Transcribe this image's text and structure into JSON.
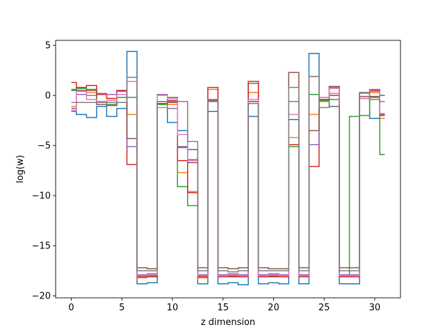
{
  "chart_data": {
    "type": "line",
    "drawstyle": "steps-mid",
    "xlabel": "z dimension",
    "ylabel": "log(w)",
    "xlim": [
      -1.55,
      32.55
    ],
    "ylim": [
      -20.2,
      5.5
    ],
    "xticks": [
      0,
      5,
      10,
      15,
      20,
      25,
      30
    ],
    "yticks": [
      5,
      0,
      -5,
      -10,
      -15,
      -20
    ],
    "x": [
      0,
      1,
      2,
      3,
      4,
      5,
      6,
      7,
      8,
      9,
      10,
      11,
      12,
      13,
      14,
      15,
      16,
      17,
      18,
      19,
      20,
      21,
      22,
      23,
      24,
      25,
      26,
      27,
      28,
      29,
      30,
      31
    ],
    "series": [
      {
        "color": "#1f77b4",
        "values": [
          -1.3,
          -1.9,
          -2.2,
          -1.1,
          -2.1,
          -1.3,
          4.4,
          -18.8,
          -18.7,
          -0.8,
          -2.7,
          -3.5,
          -5.4,
          -18.8,
          -1.6,
          -18.8,
          -18.7,
          -18.9,
          -2.1,
          -18.8,
          -18.7,
          -18.8,
          -2.4,
          -18.8,
          4.2,
          -0.6,
          -1.1,
          -18.8,
          -18.8,
          0.2,
          -2.3,
          0.0
        ]
      },
      {
        "color": "#ff7f0e",
        "values": [
          -1.1,
          0.5,
          0.3,
          0.2,
          -0.3,
          0.5,
          -1.9,
          -18.2,
          -18.1,
          -1.2,
          -0.9,
          -7.7,
          -9.6,
          -18.2,
          0.6,
          -18.1,
          -18.1,
          -18.1,
          0.3,
          -18.1,
          -18.1,
          -18.1,
          -4.2,
          -18.1,
          -1.9,
          -0.6,
          0.2,
          -18.1,
          -18.1,
          0.2,
          0.3,
          -2.3
        ]
      },
      {
        "color": "#2ca02c",
        "values": [
          0.5,
          0.7,
          0.6,
          -0.6,
          -0.9,
          -0.2,
          -0.2,
          -18.0,
          -18.0,
          -0.9,
          -0.2,
          -9.1,
          -11.0,
          -18.0,
          -0.6,
          -18.0,
          -18.0,
          -18.0,
          1.2,
          -18.0,
          -18.0,
          -18.0,
          -5.1,
          -18.0,
          0.1,
          -0.5,
          -0.4,
          -18.0,
          -2.1,
          -2.0,
          -0.2,
          -5.9
        ]
      },
      {
        "color": "#d62728",
        "values": [
          1.3,
          0.8,
          1.0,
          0.1,
          -0.3,
          0.5,
          -6.9,
          -18.1,
          -18.1,
          -0.6,
          -0.5,
          -6.5,
          -9.7,
          -18.1,
          0.8,
          -18.1,
          -18.1,
          -18.1,
          1.4,
          -18.1,
          -18.1,
          -18.1,
          -4.9,
          -18.1,
          -7.1,
          -0.4,
          0.0,
          -18.1,
          -18.1,
          -0.3,
          0.5,
          -2.0
        ]
      },
      {
        "color": "#9467bd",
        "values": [
          -1.6,
          0.1,
          0.0,
          0.2,
          0.1,
          0.4,
          -5.1,
          -17.9,
          -17.8,
          0.1,
          -1.3,
          -5.1,
          -6.4,
          -17.9,
          -0.6,
          -17.9,
          -17.8,
          -17.9,
          -0.6,
          -17.9,
          -17.8,
          -17.9,
          -0.6,
          -17.9,
          -4.9,
          -0.2,
          0.8,
          -17.9,
          -17.9,
          0.3,
          0.6,
          -2.0
        ]
      },
      {
        "color": "#8c564b",
        "values": [
          0.6,
          0.5,
          0.5,
          -0.9,
          -1.0,
          -0.7,
          -4.3,
          -17.2,
          -17.3,
          -0.8,
          -0.7,
          -5.2,
          -6.7,
          -17.2,
          -0.5,
          -17.2,
          -17.3,
          -17.2,
          -0.6,
          -17.2,
          -17.3,
          -17.3,
          2.3,
          -17.2,
          -3.5,
          -0.4,
          0.9,
          -17.2,
          -17.2,
          -0.1,
          -0.1,
          -1.9
        ]
      },
      {
        "color": "#e377c2",
        "values": [
          -1.5,
          0.4,
          -0.4,
          -0.6,
          -0.5,
          0.1,
          1.4,
          -18.0,
          -17.9,
          0.0,
          -0.3,
          -3.9,
          -6.5,
          -18.0,
          -0.4,
          -18.0,
          -17.9,
          -18.0,
          -0.4,
          -18.0,
          -17.9,
          -18.0,
          -1.9,
          -18.0,
          1.9,
          -0.2,
          0.7,
          -18.0,
          -18.0,
          -0.3,
          0.4,
          -1.8
        ]
      },
      {
        "color": "#7f7f7f",
        "values": [
          -0.7,
          -0.7,
          -0.7,
          -0.7,
          -0.7,
          -0.7,
          1.8,
          -17.5,
          -17.5,
          -0.6,
          -0.6,
          -0.6,
          -4.6,
          -17.5,
          -0.4,
          -17.5,
          -17.6,
          -17.5,
          -0.8,
          -17.5,
          -17.5,
          -17.5,
          0.8,
          -17.5,
          1.9,
          -1.2,
          -1.1,
          -17.5,
          -17.5,
          0.3,
          -0.4,
          -0.6
        ]
      }
    ]
  }
}
